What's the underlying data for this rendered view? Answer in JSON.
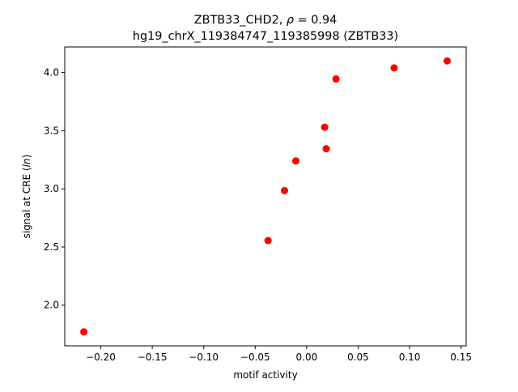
{
  "chart_data": {
    "type": "scatter",
    "title_prefix": "ZBTB33_CHD2, ",
    "title_rho_symbol": "ρ",
    "title_rho_value": " = 0.94",
    "subtitle": "hg19_chrX_119384747_119385998 (ZBTB33)",
    "xlabel": "motif activity",
    "ylabel_prefix": "signal at CRE (",
    "ylabel_italic": "ln",
    "ylabel_suffix": ")",
    "xlim": [
      -0.235,
      0.155
    ],
    "ylim": [
      1.65,
      4.22
    ],
    "x_ticks": [
      -0.2,
      -0.15,
      -0.1,
      -0.05,
      0.0,
      0.05,
      0.1,
      0.15
    ],
    "x_tick_labels": [
      "−0.20",
      "−0.15",
      "−0.10",
      "−0.05",
      "0.00",
      "0.05",
      "0.10",
      "0.15"
    ],
    "y_ticks": [
      2.0,
      2.5,
      3.0,
      3.5,
      4.0
    ],
    "y_tick_labels": [
      "2.0",
      "2.5",
      "3.0",
      "3.5",
      "4.0"
    ],
    "grid": false,
    "marker_color": "#ff0000",
    "points": [
      {
        "x": -0.2165,
        "y": 1.77
      },
      {
        "x": -0.0375,
        "y": 2.555
      },
      {
        "x": -0.0215,
        "y": 2.985
      },
      {
        "x": -0.0105,
        "y": 3.24
      },
      {
        "x": 0.0175,
        "y": 3.53
      },
      {
        "x": 0.019,
        "y": 3.345
      },
      {
        "x": 0.0285,
        "y": 3.945
      },
      {
        "x": 0.085,
        "y": 4.04
      },
      {
        "x": 0.1365,
        "y": 4.1
      }
    ]
  }
}
